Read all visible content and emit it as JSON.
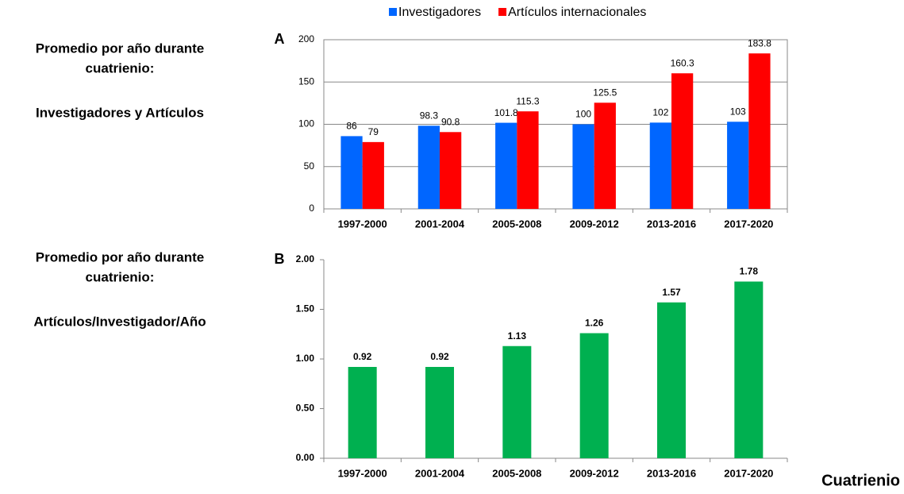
{
  "chart_data": [
    {
      "type": "bar",
      "panel": "A",
      "side_text": [
        "Promedio por año durante",
        "cuatrienio:",
        "Investigadores y Artículos"
      ],
      "categories": [
        "1997-2000",
        "2001-2004",
        "2005-2008",
        "2009-2012",
        "2013-2016",
        "2017-2020"
      ],
      "series": [
        {
          "name": "Investigadores",
          "color": "#0066ff",
          "values": [
            86,
            98.3,
            101.8,
            100,
            102,
            103
          ]
        },
        {
          "name": "Artículos internacionales",
          "color": "#ff0000",
          "values": [
            79,
            90.8,
            115.3,
            125.5,
            160.3,
            183.8
          ]
        }
      ],
      "ylim": [
        0,
        200
      ],
      "yticks": [
        0,
        50,
        100,
        150,
        200
      ],
      "grid": true,
      "legend": "top"
    },
    {
      "type": "bar",
      "panel": "B",
      "side_text": [
        "Promedio por año durante",
        "cuatrienio:",
        "Artículos/Investigador/Año"
      ],
      "xlabel": "Cuatrienio",
      "categories": [
        "1997-2000",
        "2001-2004",
        "2005-2008",
        "2009-2012",
        "2013-2016",
        "2017-2020"
      ],
      "series": [
        {
          "color": "#00b050",
          "values": [
            0.92,
            0.92,
            1.13,
            1.26,
            1.57,
            1.78
          ]
        }
      ],
      "ylim": [
        0,
        2
      ],
      "yticks": [
        {
          "value": 0,
          "label": "0.00"
        },
        {
          "value": 0.5,
          "label": "0.50"
        },
        {
          "value": 1,
          "label": "1.00"
        },
        {
          "value": 1.5,
          "label": "1.50"
        },
        {
          "value": 2,
          "label": "2.00"
        }
      ],
      "grid": false
    }
  ]
}
